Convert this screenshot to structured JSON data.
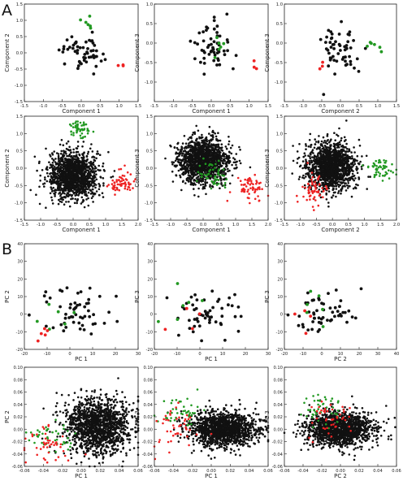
{
  "panel_labels": [
    "A",
    "B"
  ],
  "colors": {
    "black": "#111111",
    "green": "#229922",
    "red": "#ee2222"
  },
  "chart_data": [
    {
      "type": "scatter",
      "panel": "A",
      "xlabel": "Component 1",
      "ylabel": "Component 2",
      "xlim": [
        -1.5,
        1.5
      ],
      "ylim": [
        -1.5,
        1.5
      ],
      "xticks": [
        -1.5,
        -1.0,
        -0.5,
        0.0,
        0.5,
        1.0,
        1.5
      ],
      "yticks": [
        -1.5,
        -1.0,
        -0.5,
        0.0,
        0.5,
        1.0,
        1.5
      ],
      "tick_labels_x": [
        "-1.5",
        "-1.0",
        "-0.5",
        "0.0",
        "0.5",
        "1.0",
        "1.5"
      ],
      "tick_labels_y": [
        "-1.5",
        "-1.0",
        "-0.5",
        "0.0",
        "0.5",
        "1.0",
        "1.5"
      ],
      "series": [
        {
          "color": "#111111",
          "n": 55,
          "cx": 0.05,
          "cy": 0.05,
          "sx": 0.28,
          "sy": 0.28
        },
        {
          "color": "#229922",
          "n": 6,
          "cx": 0.15,
          "cy": 0.9,
          "sx": 0.12,
          "sy": 0.1
        },
        {
          "color": "#ee2222",
          "n": 3,
          "cx": 1.05,
          "cy": -0.35,
          "sx": 0.05,
          "sy": 0.05
        }
      ]
    },
    {
      "type": "scatter",
      "panel": "A",
      "xlabel": "Component 1",
      "ylabel": "Component 3",
      "xlim": [
        -1.5,
        1.5
      ],
      "ylim": [
        -1.5,
        1.0
      ],
      "xticks": [
        -1.5,
        -1.0,
        -0.5,
        0.0,
        0.5,
        1.0,
        1.5
      ],
      "yticks": [
        -1.0,
        -0.5,
        0.0,
        0.5,
        1.0
      ],
      "tick_labels_x": [
        "-1.5",
        "-1.0",
        "-0.5",
        "0.0",
        "0.5",
        "1.0",
        "1.5"
      ],
      "tick_labels_y": [
        "-1.0",
        "-0.5",
        "0.0",
        "0.5",
        "1.0"
      ],
      "series": [
        {
          "color": "#111111",
          "n": 55,
          "cx": 0.0,
          "cy": -0.1,
          "sx": 0.25,
          "sy": 0.35
        },
        {
          "color": "#229922",
          "n": 6,
          "cx": 0.1,
          "cy": -0.1,
          "sx": 0.15,
          "sy": 0.15
        },
        {
          "color": "#ee2222",
          "n": 3,
          "cx": 1.1,
          "cy": -0.65,
          "sx": 0.08,
          "sy": 0.08
        }
      ]
    },
    {
      "type": "scatter",
      "panel": "A",
      "xlabel": "Component 2",
      "ylabel": "Component 3",
      "xlim": [
        -1.5,
        1.5
      ],
      "ylim": [
        -1.5,
        1.0
      ],
      "xticks": [
        -1.5,
        -1.0,
        -0.5,
        0.0,
        0.5,
        1.0,
        1.5
      ],
      "yticks": [
        -1.0,
        -0.5,
        0.0,
        0.5,
        1.0
      ],
      "tick_labels_x": [
        "-1.5",
        "-1.0",
        "-0.5",
        "0.0",
        "0.5",
        "1.0",
        "1.5"
      ],
      "tick_labels_y": [
        "-1.0",
        "-0.5",
        "0.0",
        "0.5",
        "1.0"
      ],
      "series": [
        {
          "color": "#111111",
          "n": 55,
          "cx": 0.0,
          "cy": -0.1,
          "sx": 0.3,
          "sy": 0.35
        },
        {
          "color": "#229922",
          "n": 6,
          "cx": 0.9,
          "cy": -0.05,
          "sx": 0.12,
          "sy": 0.15
        },
        {
          "color": "#ee2222",
          "n": 3,
          "cx": -0.5,
          "cy": -0.6,
          "sx": 0.06,
          "sy": 0.06
        }
      ]
    },
    {
      "type": "scatter",
      "panel": "A",
      "xlabel": "Component 1",
      "ylabel": "Component 2",
      "xlim": [
        -1.5,
        2.0
      ],
      "ylim": [
        -1.5,
        1.5
      ],
      "xticks": [
        -1.5,
        -1.0,
        -0.5,
        0.0,
        0.5,
        1.0,
        1.5,
        2.0
      ],
      "yticks": [
        -1.5,
        -1.0,
        -0.5,
        0.0,
        0.5,
        1.0,
        1.5
      ],
      "tick_labels_x": [
        "-1.5",
        "-1.0",
        "-0.5",
        "0.0",
        "0.5",
        "1.0",
        "1.5",
        "2.0"
      ],
      "tick_labels_y": [
        "-1.5",
        "-1.0",
        "-0.5",
        "0.0",
        "0.5",
        "1.0",
        "1.5"
      ],
      "series": [
        {
          "color": "#111111",
          "n": 1400,
          "cx": 0.0,
          "cy": -0.2,
          "sx": 0.38,
          "sy": 0.33
        },
        {
          "color": "#229922",
          "n": 55,
          "cx": 0.2,
          "cy": 1.1,
          "sx": 0.15,
          "sy": 0.12
        },
        {
          "color": "#ee2222",
          "n": 60,
          "cx": 1.5,
          "cy": -0.45,
          "sx": 0.2,
          "sy": 0.18
        }
      ]
    },
    {
      "type": "scatter",
      "panel": "A",
      "xlabel": "Component 1",
      "ylabel": "Component 3",
      "xlim": [
        -1.5,
        2.0
      ],
      "ylim": [
        -1.5,
        1.5
      ],
      "xticks": [
        -1.5,
        -1.0,
        -0.5,
        0.0,
        0.5,
        1.0,
        1.5,
        2.0
      ],
      "yticks": [
        -1.5,
        -1.0,
        -0.5,
        0.0,
        0.5,
        1.0,
        1.5
      ],
      "tick_labels_x": [
        "-1.5",
        "-1.0",
        "-0.5",
        "0.0",
        "0.5",
        "1.0",
        "1.5",
        "2.0"
      ],
      "tick_labels_y": [
        "-1.5",
        "-1.0",
        "-0.5",
        "0.0",
        "0.5",
        "1.0",
        "1.5"
      ],
      "series": [
        {
          "color": "#111111",
          "n": 1400,
          "cx": 0.0,
          "cy": 0.2,
          "sx": 0.37,
          "sy": 0.33
        },
        {
          "color": "#229922",
          "n": 55,
          "cx": 0.3,
          "cy": -0.2,
          "sx": 0.22,
          "sy": 0.2
        },
        {
          "color": "#ee2222",
          "n": 60,
          "cx": 1.45,
          "cy": -0.55,
          "sx": 0.22,
          "sy": 0.2
        }
      ]
    },
    {
      "type": "scatter",
      "panel": "A",
      "xlabel": "Component 2",
      "ylabel": "Component 3",
      "xlim": [
        -1.5,
        2.0
      ],
      "ylim": [
        -1.5,
        1.5
      ],
      "xticks": [
        -1.5,
        -1.0,
        -0.5,
        0.0,
        0.5,
        1.0,
        1.5,
        2.0
      ],
      "yticks": [
        -1.5,
        -1.0,
        -0.5,
        0.0,
        0.5,
        1.0,
        1.5
      ],
      "tick_labels_x": [
        "-1.5",
        "-1.0",
        "-0.5",
        "0.0",
        "0.5",
        "1.0",
        "1.5",
        "2.0"
      ],
      "tick_labels_y": [
        "-1.5",
        "-1.0",
        "-0.5",
        "0.0",
        "0.5",
        "1.0",
        "1.5"
      ],
      "series": [
        {
          "color": "#111111",
          "n": 1400,
          "cx": -0.05,
          "cy": 0.05,
          "sx": 0.38,
          "sy": 0.33
        },
        {
          "color": "#229922",
          "n": 55,
          "cx": 1.45,
          "cy": -0.02,
          "sx": 0.2,
          "sy": 0.15
        },
        {
          "color": "#ee2222",
          "n": 60,
          "cx": -0.6,
          "cy": -0.6,
          "sx": 0.22,
          "sy": 0.22
        }
      ]
    },
    {
      "type": "scatter",
      "panel": "B",
      "xlabel": "PC 1",
      "ylabel": "PC 2",
      "xlim": [
        -20,
        30
      ],
      "ylim": [
        -20,
        40
      ],
      "xticks": [
        -20,
        -10,
        0,
        10,
        20,
        30
      ],
      "yticks": [
        -20,
        -10,
        0,
        10,
        20,
        30,
        40
      ],
      "tick_labels_x": [
        "-20",
        "-10",
        "0",
        "10",
        "20",
        "30"
      ],
      "tick_labels_y": [
        "-20",
        "-10",
        "0",
        "10",
        "20",
        "30",
        "40"
      ],
      "series": [
        {
          "color": "#111111",
          "n": 55,
          "cx": 2.0,
          "cy": 1.0,
          "sx": 8.0,
          "sy": 7.5
        },
        {
          "color": "#229922",
          "n": 6,
          "cx": -5.0,
          "cy": -4.0,
          "sx": 5.0,
          "sy": 4.0
        },
        {
          "color": "#ee2222",
          "n": 5,
          "cx": -12.0,
          "cy": -11.0,
          "sx": 4.0,
          "sy": 3.0
        }
      ]
    },
    {
      "type": "scatter",
      "panel": "B",
      "xlabel": "PC 1",
      "ylabel": "PC 3",
      "xlim": [
        -20,
        30
      ],
      "ylim": [
        -20,
        40
      ],
      "xticks": [
        -20,
        -10,
        0,
        10,
        20,
        30
      ],
      "yticks": [
        -20,
        -10,
        0,
        10,
        20,
        30,
        40
      ],
      "tick_labels_x": [
        "-20",
        "-10",
        "0",
        "10",
        "20",
        "30"
      ],
      "tick_labels_y": [
        "-20",
        "-10",
        "0",
        "10",
        "20",
        "30",
        "40"
      ],
      "series": [
        {
          "color": "#111111",
          "n": 55,
          "cx": 2.0,
          "cy": 0.0,
          "sx": 8.0,
          "sy": 6.0
        },
        {
          "color": "#229922",
          "n": 6,
          "cx": -8.0,
          "cy": 2.0,
          "sx": 6.0,
          "sy": 8.0
        },
        {
          "color": "#ee2222",
          "n": 4,
          "cx": -7.0,
          "cy": -6.0,
          "sx": 5.0,
          "sy": 6.0
        }
      ]
    },
    {
      "type": "scatter",
      "panel": "B",
      "xlabel": "PC 2",
      "ylabel": "PC 3",
      "xlim": [
        -20,
        40
      ],
      "ylim": [
        -20,
        40
      ],
      "xticks": [
        -20,
        -10,
        0,
        10,
        20,
        30,
        40
      ],
      "yticks": [
        -20,
        -10,
        0,
        10,
        20,
        30,
        40
      ],
      "tick_labels_x": [
        "-20",
        "-10",
        "0",
        "10",
        "20",
        "30",
        "40"
      ],
      "tick_labels_y": [
        "-20",
        "-10",
        "0",
        "10",
        "20",
        "30",
        "40"
      ],
      "series": [
        {
          "color": "#111111",
          "n": 55,
          "cx": 2.0,
          "cy": 0.0,
          "sx": 8.0,
          "sy": 6.0
        },
        {
          "color": "#229922",
          "n": 6,
          "cx": -3.0,
          "cy": 3.0,
          "sx": 5.0,
          "sy": 6.0
        },
        {
          "color": "#ee2222",
          "n": 4,
          "cx": -10.0,
          "cy": -2.0,
          "sx": 3.0,
          "sy": 5.0
        }
      ]
    },
    {
      "type": "scatter",
      "panel": "B",
      "xlabel": "PC 1",
      "ylabel": "PC 2",
      "xlim": [
        -0.06,
        0.06
      ],
      "ylim": [
        -0.06,
        0.1
      ],
      "xticks": [
        -0.06,
        -0.04,
        -0.02,
        0.0,
        0.02,
        0.04,
        0.06
      ],
      "yticks": [
        -0.06,
        -0.04,
        -0.02,
        0.0,
        0.02,
        0.04,
        0.06,
        0.08,
        0.1
      ],
      "tick_labels_x": [
        "-0.06",
        "-0.04",
        "-0.02",
        "0.00",
        "0.02",
        "0.04",
        "0.06"
      ],
      "tick_labels_y": [
        "-0.06",
        "-0.04",
        "-0.02",
        "0.00",
        "0.02",
        "0.04",
        "0.06",
        "0.08",
        "0.10"
      ],
      "series": [
        {
          "color": "#111111",
          "n": 1400,
          "cx": 0.018,
          "cy": 0.005,
          "sx": 0.018,
          "sy": 0.022
        },
        {
          "color": "#229922",
          "n": 45,
          "cx": -0.032,
          "cy": -0.012,
          "sx": 0.012,
          "sy": 0.012
        },
        {
          "color": "#ee2222",
          "n": 45,
          "cx": -0.035,
          "cy": -0.022,
          "sx": 0.012,
          "sy": 0.014
        }
      ]
    },
    {
      "type": "scatter",
      "panel": "B",
      "xlabel": "PC 1",
      "ylabel": "PC 3",
      "xlim": [
        -0.06,
        0.06
      ],
      "ylim": [
        -0.06,
        0.1
      ],
      "xticks": [
        -0.06,
        -0.04,
        -0.02,
        0.0,
        0.02,
        0.04,
        0.06
      ],
      "yticks": [
        -0.06,
        -0.04,
        -0.02,
        0.0,
        0.02,
        0.04,
        0.06,
        0.08,
        0.1
      ],
      "tick_labels_x": [
        "-0.06",
        "-0.04",
        "-0.02",
        "0.00",
        "0.02",
        "0.04",
        "0.06"
      ],
      "tick_labels_y": [
        "-0.06",
        "-0.04",
        "-0.02",
        "0.00",
        "0.02",
        "0.04",
        "0.06",
        "0.08",
        "0.10"
      ],
      "series": [
        {
          "color": "#111111",
          "n": 1400,
          "cx": 0.012,
          "cy": 0.0,
          "sx": 0.018,
          "sy": 0.014
        },
        {
          "color": "#229922",
          "n": 45,
          "cx": -0.03,
          "cy": 0.025,
          "sx": 0.012,
          "sy": 0.015
        },
        {
          "color": "#ee2222",
          "n": 45,
          "cx": -0.035,
          "cy": 0.005,
          "sx": 0.012,
          "sy": 0.018
        }
      ]
    },
    {
      "type": "scatter",
      "panel": "B",
      "xlabel": "PC 2",
      "ylabel": "PC 3",
      "xlim": [
        -0.06,
        0.06
      ],
      "ylim": [
        -0.06,
        0.1
      ],
      "xticks": [
        -0.06,
        -0.04,
        -0.02,
        0.0,
        0.02,
        0.04,
        0.06
      ],
      "yticks": [
        -0.06,
        -0.04,
        -0.02,
        0.0,
        0.02,
        0.04,
        0.06,
        0.08,
        0.1
      ],
      "tick_labels_x": [
        "-0.06",
        "-0.04",
        "-0.02",
        "0.00",
        "0.02",
        "0.04",
        "0.06"
      ],
      "tick_labels_y": [
        "-0.06",
        "-0.04",
        "-0.02",
        "0.00",
        "0.02",
        "0.04",
        "0.06",
        "0.08",
        "0.10"
      ],
      "series": [
        {
          "color": "#111111",
          "n": 1400,
          "cx": 0.0,
          "cy": 0.0,
          "sx": 0.018,
          "sy": 0.014
        },
        {
          "color": "#229922",
          "n": 45,
          "cx": -0.02,
          "cy": 0.03,
          "sx": 0.01,
          "sy": 0.012
        },
        {
          "color": "#ee2222",
          "n": 45,
          "cx": -0.01,
          "cy": 0.02,
          "sx": 0.012,
          "sy": 0.015
        }
      ]
    }
  ]
}
